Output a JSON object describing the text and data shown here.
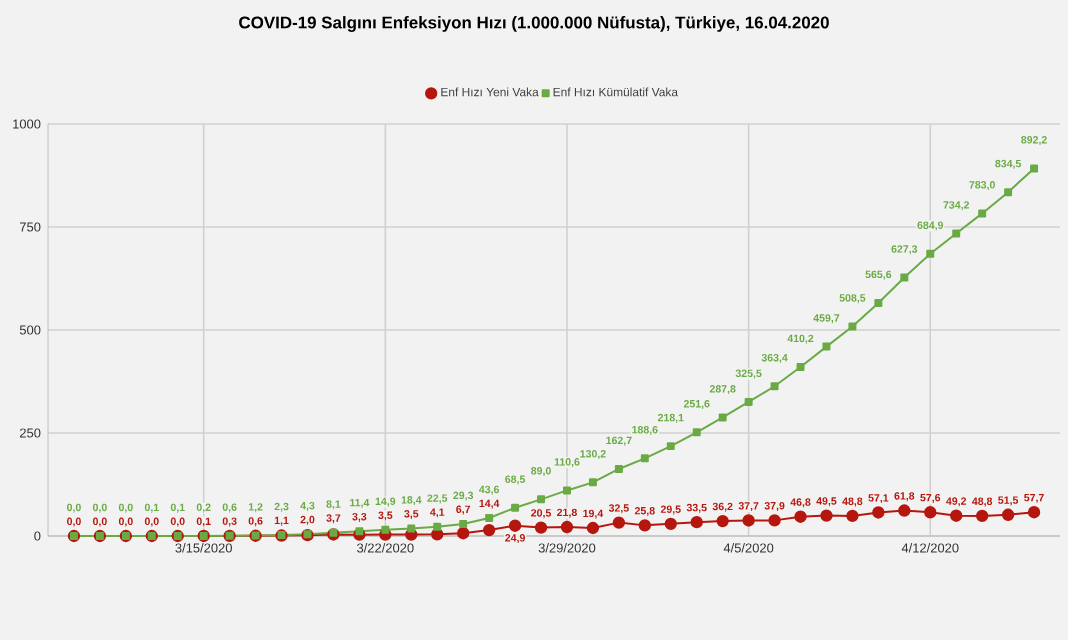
{
  "chart_data": {
    "type": "line",
    "title": "COVID-19 Salgını Enfeksiyon Hızı (1.000.000 Nüfusta), Türkiye, 16.04.2020",
    "x": [
      "2020-03-10",
      "2020-03-11",
      "2020-03-12",
      "2020-03-13",
      "2020-03-14",
      "2020-03-15",
      "2020-03-16",
      "2020-03-17",
      "2020-03-18",
      "2020-03-19",
      "2020-03-20",
      "2020-03-21",
      "2020-03-22",
      "2020-03-23",
      "2020-03-24",
      "2020-03-25",
      "2020-03-26",
      "2020-03-27",
      "2020-03-28",
      "2020-03-29",
      "2020-03-30",
      "2020-03-31",
      "2020-04-01",
      "2020-04-02",
      "2020-04-03",
      "2020-04-04",
      "2020-04-05",
      "2020-04-06",
      "2020-04-07",
      "2020-04-08",
      "2020-04-09",
      "2020-04-10",
      "2020-04-11",
      "2020-04-12",
      "2020-04-13",
      "2020-04-14",
      "2020-04-15",
      "2020-04-16"
    ],
    "series": [
      {
        "name": "Enf Hızı Yeni Vaka",
        "color": "#b5170e",
        "marker": "circle",
        "values": [
          0.0,
          0.0,
          0.0,
          0.0,
          0.0,
          0.1,
          0.3,
          0.6,
          1.1,
          2.0,
          3.7,
          3.3,
          3.5,
          3.5,
          4.1,
          6.7,
          14.4,
          24.9,
          20.5,
          21.8,
          19.4,
          32.5,
          25.8,
          29.5,
          33.5,
          36.2,
          37.7,
          37.9,
          46.8,
          49.5,
          48.8,
          57.1,
          61.8,
          57.6,
          49.2,
          48.8,
          51.5,
          57.7
        ],
        "value_labels": [
          "0,0",
          "0,0",
          "0,0",
          "0,0",
          "0,0",
          "0,1",
          "0,3",
          "0,6",
          "1,1",
          "2,0",
          "3,7",
          "3,3",
          "3,5",
          "3,5",
          "4,1",
          "6,7",
          "14,4",
          "24,9",
          "20,5",
          "21,8",
          "19,4",
          "32,5",
          "25,8",
          "29,5",
          "33,5",
          "36,2",
          "37,7",
          "37,9",
          "46,8",
          "49,5",
          "48,8",
          "57,1",
          "61,8",
          "57,6",
          "49,2",
          "48,8",
          "51,5",
          "57,7"
        ]
      },
      {
        "name": "Enf Hızı Kümülatif Vaka",
        "color": "#6aaa44",
        "marker": "square",
        "values": [
          0.0,
          0.0,
          0.0,
          0.1,
          0.1,
          0.2,
          0.6,
          1.2,
          2.3,
          4.3,
          8.1,
          11.4,
          14.9,
          18.4,
          22.5,
          29.3,
          43.6,
          68.5,
          89.0,
          110.6,
          130.2,
          162.7,
          188.6,
          218.1,
          251.6,
          287.8,
          325.5,
          363.4,
          410.2,
          459.7,
          508.5,
          565.6,
          627.3,
          684.9,
          734.2,
          783.0,
          834.5,
          892.2
        ],
        "value_labels": [
          "0,0",
          "0,0",
          "0,0",
          "0,1",
          "0,1",
          "0,2",
          "0,6",
          "1,2",
          "2,3",
          "4,3",
          "8,1",
          "11,4",
          "14,9",
          "18,4",
          "22,5",
          "29,3",
          "43,6",
          "68,5",
          "89,0",
          "110,6",
          "130,2",
          "162,7",
          "188,6",
          "218,1",
          "251,6",
          "287,8",
          "325,5",
          "363,4",
          "410,2",
          "459,7",
          "508,5",
          "565,6",
          "627,3",
          "684,9",
          "734,2",
          "783,0",
          "834,5",
          "892,2"
        ]
      }
    ],
    "xlim": [
      "2020-03-09",
      "2020-04-17"
    ],
    "xticks": [
      {
        "value": "2020-03-15",
        "label": "3/15/2020"
      },
      {
        "value": "2020-03-22",
        "label": "3/22/2020"
      },
      {
        "value": "2020-03-29",
        "label": "3/29/2020"
      },
      {
        "value": "2020-04-05",
        "label": "4/5/2020"
      },
      {
        "value": "2020-04-12",
        "label": "4/12/2020"
      }
    ],
    "ylim": [
      0,
      1000
    ],
    "yticks": [
      0,
      250,
      500,
      750,
      1000
    ],
    "grid": true,
    "legend": "top",
    "line_style": "solid"
  }
}
